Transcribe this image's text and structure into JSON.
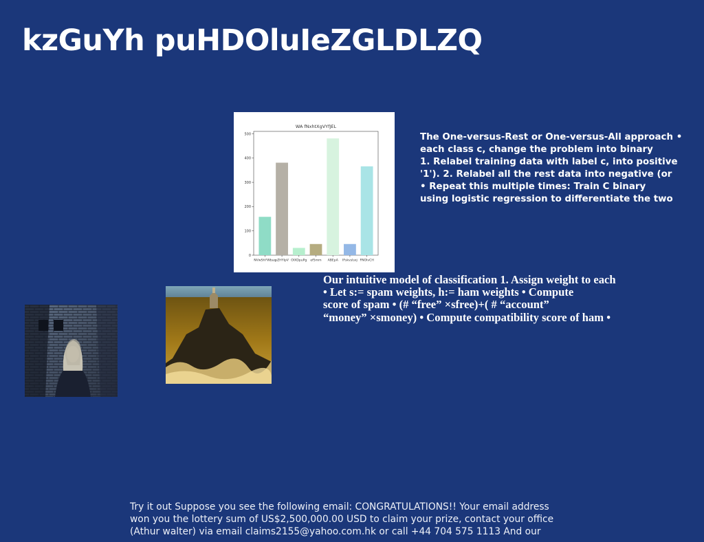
{
  "slide": {
    "title": "kzGuYh puHDOluIeZGLDLZQ"
  },
  "text_blocks": {
    "ovr": [
      "The One-versus-Rest or One-versus-All approach •",
      "each class c, change the problem into binary",
      "1. Relabel training data with label c, into positive",
      "'1'). 2. Relabel all the rest data into negative (or",
      "• Repeat this multiple times: Train C binary",
      "using logistic regression to differentiate the two"
    ],
    "model": [
      "Our intuitive model of classification 1. Assign weight to each",
      "• Let s:= spam weights, h:= ham weights • Compute",
      "score of spam • (# “free” ×sfree)+( # “account”",
      "“money” ×smoney) • Compute compatibility score of ham •"
    ],
    "footer": [
      "Try it out Suppose you see the following email: CONGRATULATIONS!! Your email address",
      "won you the lottery sum of US$2,500,000.00 USD to claim your prize, contact your office",
      "(Athur walter) via email claims2155@yahoo.com.hk or call +44 704 575 1113 And our"
    ]
  },
  "images": {
    "photo_left": "woman-by-brick-wall",
    "photo_right": "lighthouse-on-rocks"
  },
  "chart_data": {
    "type": "bar",
    "title": "WA fNxhtXgVYfJEL",
    "xlabel": "",
    "ylabel": "",
    "categories": [
      "NVwShYWbuq",
      "pZHYIpV",
      "OlXDpuPg",
      "ef5mm",
      "ABEpA",
      "IFskvslsxj",
      "FNOlvCH"
    ],
    "values": [
      158,
      381,
      30,
      46,
      481,
      46,
      366
    ],
    "colors": [
      "#8fdcc6",
      "#b5b0a6",
      "#b7efce",
      "#b5ac80",
      "#d7f3df",
      "#94b8e6",
      "#a9e4e6"
    ],
    "ylim": [
      0,
      510
    ],
    "yticks": [
      0,
      100,
      200,
      300,
      400,
      500
    ],
    "grid": false,
    "legend": "none"
  }
}
